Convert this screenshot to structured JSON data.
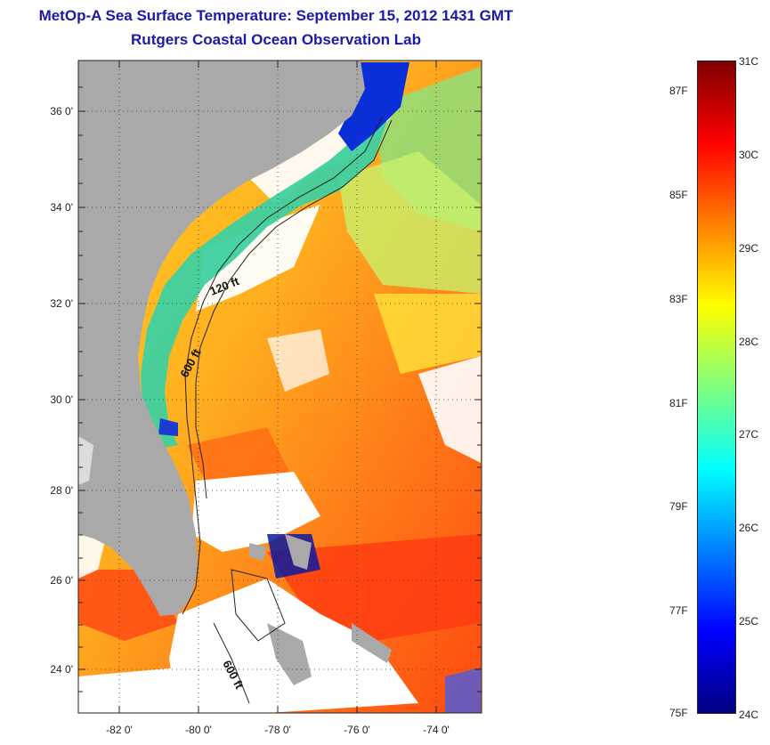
{
  "header": {
    "title": "MetOp-A Sea Surface Temperature:  September 15, 2012 1431 GMT",
    "subtitle": "Rutgers Coastal Ocean Observation Lab"
  },
  "map": {
    "lat_ticks": [
      "36 0'",
      "34 0'",
      "32 0'",
      "30 0'",
      "28 0'",
      "26 0'",
      "24 0'"
    ],
    "lon_ticks": [
      "-82 0'",
      "-80 0'",
      "-78 0'",
      "-76 0'",
      "-74 0'"
    ],
    "contour_labels": [
      "120 ft",
      "600 ft",
      "600 ft"
    ],
    "land_color": "#a9a9a9",
    "cloud_color": "#ffffff"
  },
  "colorbar": {
    "celsius_labels": [
      "31C",
      "30C",
      "29C",
      "28C",
      "27C",
      "26C",
      "25C",
      "24C"
    ],
    "fahrenheit_labels": [
      "87F",
      "85F",
      "83F",
      "81F",
      "79F",
      "77F",
      "75F"
    ],
    "colormap": [
      "#7f0000",
      "#ff0000",
      "#ff8000",
      "#ffff00",
      "#80ff80",
      "#00ffff",
      "#0080ff",
      "#0000ff",
      "#00007f"
    ]
  }
}
